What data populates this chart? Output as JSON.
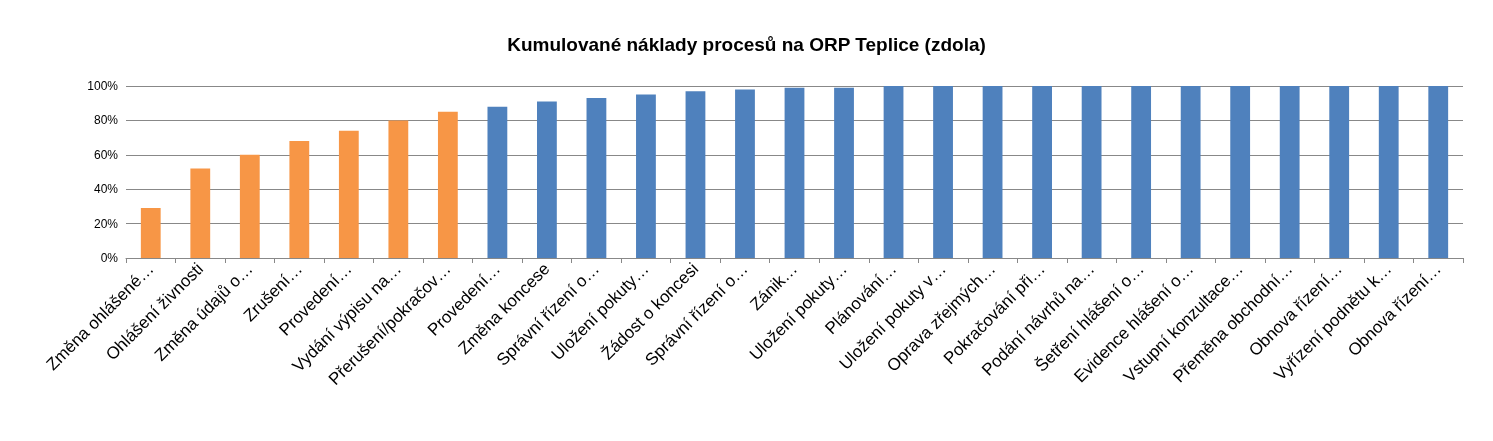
{
  "chart_data": {
    "type": "bar",
    "title": "Kumulované náklady procesů na ORP Teplice (zdola)",
    "categories": [
      "Změna ohlášené…",
      "Ohlášení živnosti",
      "Změna údajů o…",
      "Zrušení…",
      "Provedení…",
      "Vydání výpisu na…",
      "Přerušení/pokračov…",
      "Provedení…",
      "Změna koncese",
      "Správní řízení o…",
      "Uložení pokuty…",
      "Žádost o koncesi",
      "Správní řízení o…",
      "Zánik…",
      "Uložení pokuty…",
      "Plánování…",
      "Uložení pokuty v…",
      "Oprava zřejmých…",
      "Pokračování při…",
      "Podání návrhů na…",
      "Šetření hlášení o…",
      "Evidence hlášení o…",
      "Vstupní konzultace…",
      "Přeměna obchodní…",
      "Obnova řízení…",
      "Vyřízení podnětu k…",
      "Obnova řízení…"
    ],
    "values": [
      29,
      52,
      60,
      68,
      74,
      80,
      85,
      88,
      91,
      93,
      95,
      97,
      98,
      99,
      99,
      100,
      100,
      100,
      100,
      100,
      100,
      100,
      100,
      100,
      100,
      100,
      100
    ],
    "colors": [
      "#f79646",
      "#f79646",
      "#f79646",
      "#f79646",
      "#f79646",
      "#f79646",
      "#f79646",
      "#4f81bd",
      "#4f81bd",
      "#4f81bd",
      "#4f81bd",
      "#4f81bd",
      "#4f81bd",
      "#4f81bd",
      "#4f81bd",
      "#4f81bd",
      "#4f81bd",
      "#4f81bd",
      "#4f81bd",
      "#4f81bd",
      "#4f81bd",
      "#4f81bd",
      "#4f81bd",
      "#4f81bd",
      "#4f81bd",
      "#4f81bd",
      "#4f81bd"
    ],
    "ylim": [
      0,
      100
    ],
    "yticks": [
      {
        "value": 0,
        "label": "0%"
      },
      {
        "value": 20,
        "label": "20%"
      },
      {
        "value": 40,
        "label": "40%"
      },
      {
        "value": 60,
        "label": "60%"
      },
      {
        "value": 80,
        "label": "80%"
      },
      {
        "value": 100,
        "label": "100%"
      }
    ],
    "grid": "y"
  }
}
